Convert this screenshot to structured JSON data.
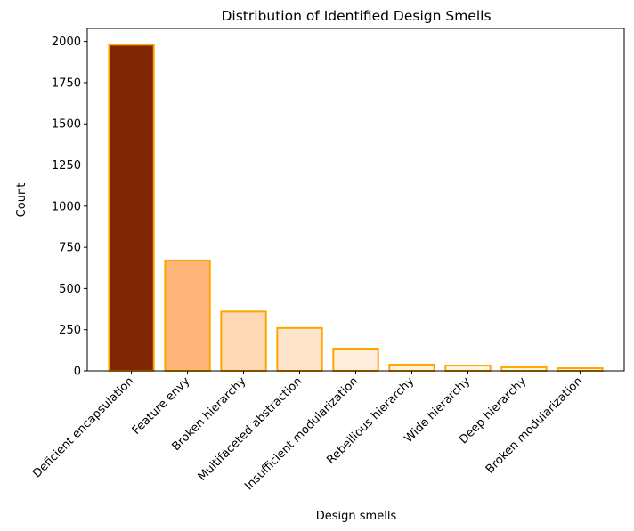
{
  "chart_data": {
    "type": "bar",
    "title": "Distribution of Identified Design Smells",
    "x_label": "Design smells",
    "y_label": "Count",
    "categories": [
      "Deficient encapsulation",
      "Feature envy",
      "Broken hierarchy",
      "Multifaceted abstraction",
      "Insufficient modularization",
      "Rebellious hierarchy",
      "Wide hierarchy",
      "Deep hierarchy",
      "Broken modularization"
    ],
    "values": [
      1980,
      670,
      360,
      260,
      135,
      38,
      32,
      22,
      16
    ],
    "colors": [
      "#7f2704",
      "#fdb57a",
      "#fdd9b5",
      "#fee4cb",
      "#feeddc",
      "#fff2e5",
      "#fff3e7",
      "#fff4e9",
      "#fff5eb"
    ],
    "edge_color": "#ffa500",
    "ylim": [
      0,
      2079
    ],
    "yticks": [
      0,
      250,
      500,
      750,
      1000,
      1250,
      1500,
      1750,
      2000
    ],
    "grid": false
  }
}
